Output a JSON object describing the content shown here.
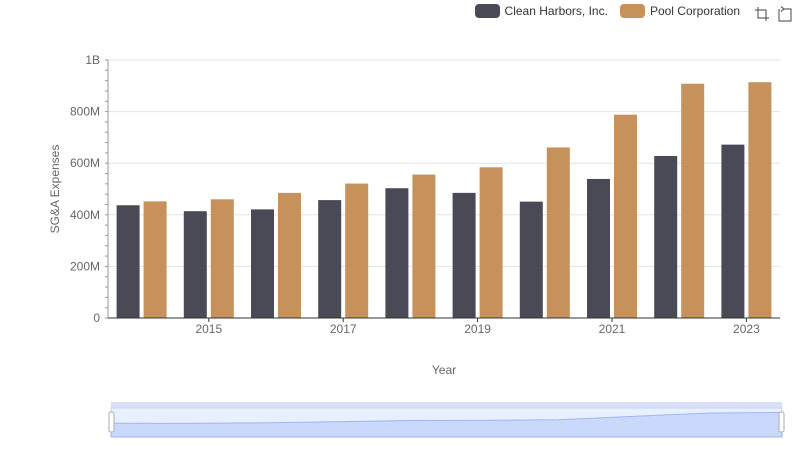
{
  "chart_data": {
    "type": "bar",
    "title": "",
    "xlabel": "Year",
    "ylabel": "SG&A Expenses",
    "x": [
      2014,
      2015,
      2016,
      2017,
      2018,
      2019,
      2020,
      2021,
      2022,
      2023
    ],
    "x_tick_labels": [
      "2015",
      "2017",
      "2019",
      "2021",
      "2023"
    ],
    "y_tick_labels": [
      "0",
      "200M",
      "400M",
      "600M",
      "800M",
      "1B"
    ],
    "ylim": [
      0,
      1000000000
    ],
    "grid": true,
    "legend_position": "top-right",
    "series": [
      {
        "name": "Clean Harbors, Inc.",
        "color": "#4a4a57",
        "values": [
          437000000,
          414000000,
          421000000,
          457000000,
          503000000,
          485000000,
          451000000,
          539000000,
          628000000,
          672000000
        ]
      },
      {
        "name": "Pool Corporation",
        "color": "#c6915a",
        "values": [
          452000000,
          460000000,
          485000000,
          521000000,
          556000000,
          584000000,
          661000000,
          788000000,
          908000000,
          914000000
        ]
      }
    ]
  },
  "toolbox": {
    "zoom_icon": "zoom-icon",
    "restore_icon": "restore-icon"
  }
}
